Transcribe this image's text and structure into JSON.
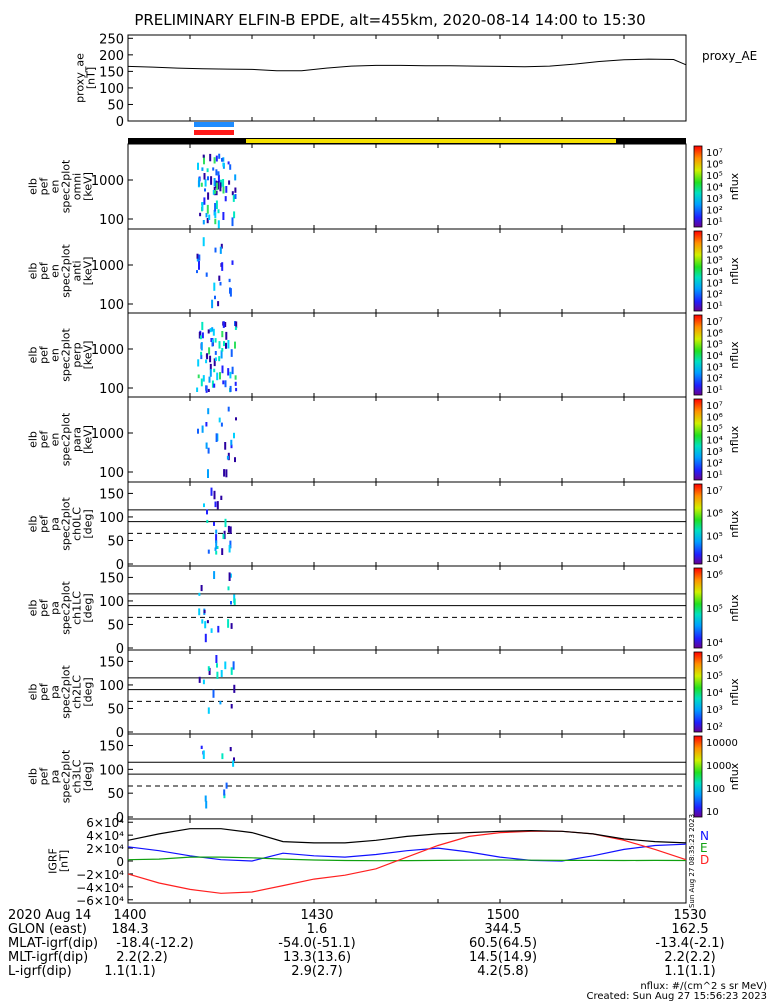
{
  "title": "PRELIMINARY ELFIN-B EPDE, alt=455km, 2020-08-14 14:00 to 15:30",
  "colors": {
    "day_bar": "#f5e000",
    "night_bar": "#000000",
    "ascending_marker": "#1e8cff",
    "descending_marker": "#ff1a1a",
    "grf_n": "#1010ff",
    "grf_e": "#10a010",
    "grf_d": "#ff2020",
    "grf_total": "#000000"
  },
  "chart_data": [
    {
      "type": "line",
      "panel": "proxy_ae",
      "ylabel_lines": [
        "proxy_ae",
        "[nT]"
      ],
      "legend": "proxy_AE",
      "ylim": [
        0,
        260
      ],
      "yticks": [
        "250",
        "200",
        "150",
        "100",
        "50",
        "0"
      ],
      "x": [
        0,
        4,
        8,
        12,
        16,
        20,
        24,
        28,
        32,
        36,
        40,
        44,
        48,
        52,
        56,
        60,
        64,
        68,
        72,
        76,
        80,
        84,
        88,
        90
      ],
      "values": [
        165,
        163,
        160,
        158,
        157,
        156,
        152,
        152,
        160,
        166,
        168,
        168,
        167,
        167,
        166,
        165,
        164,
        166,
        172,
        180,
        185,
        187,
        186,
        170
      ]
    },
    {
      "type": "heatmap",
      "panel": "elb_pef_en_spec2plot_omni",
      "ylabel_lines": [
        "elb",
        "pef",
        "en",
        "spec2plot",
        "omni",
        "[keV]"
      ],
      "yticks": [
        "1000",
        "100"
      ],
      "colorbar_label": "nflux",
      "colorbar_ticks": [
        "10⁷",
        "10⁶",
        "10⁵",
        "10⁴",
        "10³",
        "10²",
        "10¹"
      ]
    },
    {
      "type": "heatmap",
      "panel": "elb_pef_en_spec2plot_anti",
      "ylabel_lines": [
        "elb",
        "pef",
        "en",
        "spec2plot",
        "anti",
        "[keV]"
      ],
      "yticks": [
        "1000",
        "100"
      ],
      "colorbar_label": "nflux",
      "colorbar_ticks": [
        "10⁷",
        "10⁶",
        "10⁵",
        "10⁴",
        "10³",
        "10²",
        "10¹"
      ]
    },
    {
      "type": "heatmap",
      "panel": "elb_pef_en_spec2plot_perp",
      "ylabel_lines": [
        "elb",
        "pef",
        "en",
        "spec2plot",
        "perp",
        "[keV]"
      ],
      "yticks": [
        "1000",
        "100"
      ],
      "colorbar_label": "nflux",
      "colorbar_ticks": [
        "10⁷",
        "10⁶",
        "10⁵",
        "10⁴",
        "10³",
        "10²",
        "10¹"
      ]
    },
    {
      "type": "heatmap",
      "panel": "elb_pef_en_spec2plot_para",
      "ylabel_lines": [
        "elb",
        "pef",
        "en",
        "spec2plot",
        "para",
        "[keV]"
      ],
      "yticks": [
        "1000",
        "100"
      ],
      "colorbar_label": "nflux",
      "colorbar_ticks": [
        "10⁷",
        "10⁶",
        "10⁵",
        "10⁴",
        "10³",
        "10²",
        "10¹"
      ]
    },
    {
      "type": "heatmap",
      "panel": "elb_pef_pa_spec2plot_ch0LC",
      "ylabel_lines": [
        "elb",
        "pef",
        "pa",
        "spec2plot",
        "ch0LC",
        "[deg]"
      ],
      "yticks": [
        "150",
        "100",
        "50",
        "0"
      ],
      "colorbar_label": "nflux",
      "colorbar_ticks": [
        "10⁷",
        "10⁶",
        "10⁵",
        "10⁴"
      ]
    },
    {
      "type": "heatmap",
      "panel": "elb_pef_pa_spec2plot_ch1LC",
      "ylabel_lines": [
        "elb",
        "pef",
        "pa",
        "spec2plot",
        "ch1LC",
        "[deg]"
      ],
      "yticks": [
        "150",
        "100",
        "50",
        "0"
      ],
      "colorbar_label": "nflux",
      "colorbar_ticks": [
        "10⁶",
        "10⁵",
        "10⁴"
      ]
    },
    {
      "type": "heatmap",
      "panel": "elb_pef_pa_spec2plot_ch2LC",
      "ylabel_lines": [
        "elb",
        "pef",
        "pa",
        "spec2plot",
        "ch2LC",
        "[deg]"
      ],
      "yticks": [
        "150",
        "100",
        "50",
        "0"
      ],
      "colorbar_label": "nflux",
      "colorbar_ticks": [
        "10⁶",
        "10⁵",
        "10⁴",
        "10³",
        "10²"
      ]
    },
    {
      "type": "heatmap",
      "panel": "elb_pef_pa_spec2plot_ch3LC",
      "ylabel_lines": [
        "elb",
        "pef",
        "pa",
        "spec2plot",
        "ch3LC",
        "[deg]"
      ],
      "yticks": [
        "150",
        "100",
        "50",
        "0"
      ],
      "colorbar_label": "nflux",
      "colorbar_ticks": [
        "10000",
        "1000",
        "100",
        "10"
      ]
    },
    {
      "type": "line",
      "panel": "igrf",
      "ylabel_lines": [
        "IGRF",
        "[nT]"
      ],
      "ylim": [
        -65000,
        65000
      ],
      "yticks": [
        "6×10⁴",
        "4×10⁴",
        "2×10⁴",
        "0",
        "−2×10⁴",
        "−4×10⁴",
        "−6×10⁴"
      ],
      "x": [
        0,
        5,
        10,
        15,
        20,
        25,
        30,
        35,
        40,
        45,
        50,
        55,
        60,
        65,
        70,
        75,
        80,
        85,
        90
      ],
      "series": [
        {
          "name": "N",
          "values": [
            22000,
            16000,
            8000,
            2000,
            0,
            12000,
            8000,
            6000,
            10000,
            16000,
            20000,
            14000,
            6000,
            1000,
            0,
            8000,
            18000,
            24000,
            26000
          ]
        },
        {
          "name": "E",
          "values": [
            2000,
            3000,
            6000,
            6000,
            5000,
            3000,
            1500,
            800,
            500,
            600,
            900,
            1200,
            1500,
            1300,
            1000,
            900,
            800,
            1000,
            800
          ]
        },
        {
          "name": "D",
          "values": [
            -20000,
            -34000,
            -44000,
            -50000,
            -48000,
            -38000,
            -28000,
            -22000,
            -12000,
            6000,
            24000,
            38000,
            44000,
            46000,
            46000,
            42000,
            32000,
            18000,
            2000
          ]
        },
        {
          "name": "",
          "values": [
            32000,
            42000,
            50000,
            50000,
            44000,
            30000,
            28000,
            28000,
            32000,
            38000,
            42000,
            44000,
            46000,
            47000,
            46000,
            42000,
            34000,
            30000,
            28000
          ]
        }
      ],
      "side_labels": [
        "N",
        "E",
        "D"
      ],
      "side_note": "Sun Aug 27 08:35:23 2023"
    }
  ],
  "axis": {
    "row_labels": [
      "2020 Aug 14",
      "GLON (east)",
      "MLAT-igrf(dip)",
      "MLT-igrf(dip)",
      "L-igrf(dip)"
    ],
    "columns": [
      {
        "x": 0,
        "time": "1400",
        "glon": "184.3",
        "mlat": "-18.4(-12.2)",
        "mlt": "2.2(2.2)",
        "l": "1.1(1.1)"
      },
      {
        "x": 30,
        "time": "1430",
        "glon": "1.6",
        "mlat": "-54.0(-51.1)",
        "mlt": "13.3(13.6)",
        "l": "2.9(2.7)"
      },
      {
        "x": 60,
        "time": "1500",
        "glon": "344.5",
        "mlat": "60.5(64.5)",
        "mlt": "14.5(14.9)",
        "l": "4.2(5.8)"
      },
      {
        "x": 90,
        "time": "1530",
        "glon": "162.5",
        "mlat": "-13.4(-2.1)",
        "mlt": "2.2(2.2)",
        "l": "1.1(1.1)"
      }
    ]
  },
  "footnote": {
    "units": "nflux: #/(cm^2 s sr MeV)",
    "created": "Created: Sun Aug 27 15:56:23 2023"
  }
}
